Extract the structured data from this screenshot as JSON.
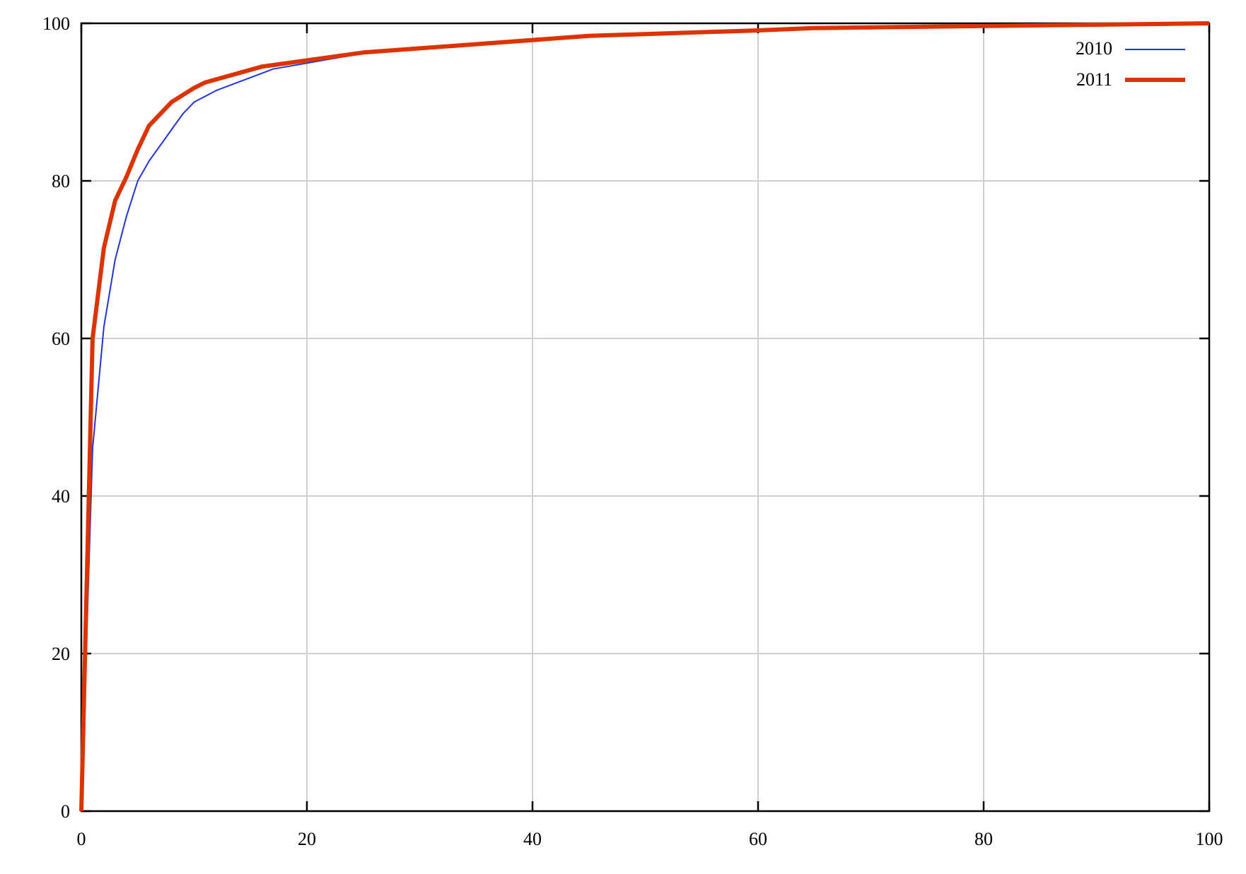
{
  "chart_data": {
    "type": "line",
    "title": "",
    "xlabel": "",
    "ylabel": "",
    "xlim": [
      0,
      100
    ],
    "ylim": [
      0,
      100
    ],
    "x_ticks": [
      "0",
      "20",
      "40",
      "60",
      "80",
      "100"
    ],
    "y_ticks": [
      "0",
      "20",
      "40",
      "60",
      "80",
      "100"
    ],
    "grid": true,
    "legend_position": "top-right",
    "series": [
      {
        "name": "2010",
        "color": "#2233dd",
        "x": [
          0,
          1,
          2,
          3,
          4,
          5,
          6,
          8,
          9,
          10,
          12,
          17,
          25,
          45,
          65,
          100
        ],
        "y": [
          0,
          46,
          61.5,
          70,
          75.5,
          80,
          82.5,
          86.5,
          88.5,
          90,
          91.5,
          94.2,
          96.2,
          98.3,
          99.4,
          100
        ]
      },
      {
        "name": "2011",
        "color": "#dd3300",
        "x": [
          0,
          1,
          2,
          3,
          4,
          5,
          6,
          8,
          10,
          11,
          16,
          25,
          45,
          60,
          65,
          100
        ],
        "y": [
          0,
          60,
          71.5,
          77.5,
          80.5,
          84,
          87,
          90,
          91.8,
          92.5,
          94.5,
          96.3,
          98.4,
          99.1,
          99.4,
          100
        ]
      }
    ]
  }
}
